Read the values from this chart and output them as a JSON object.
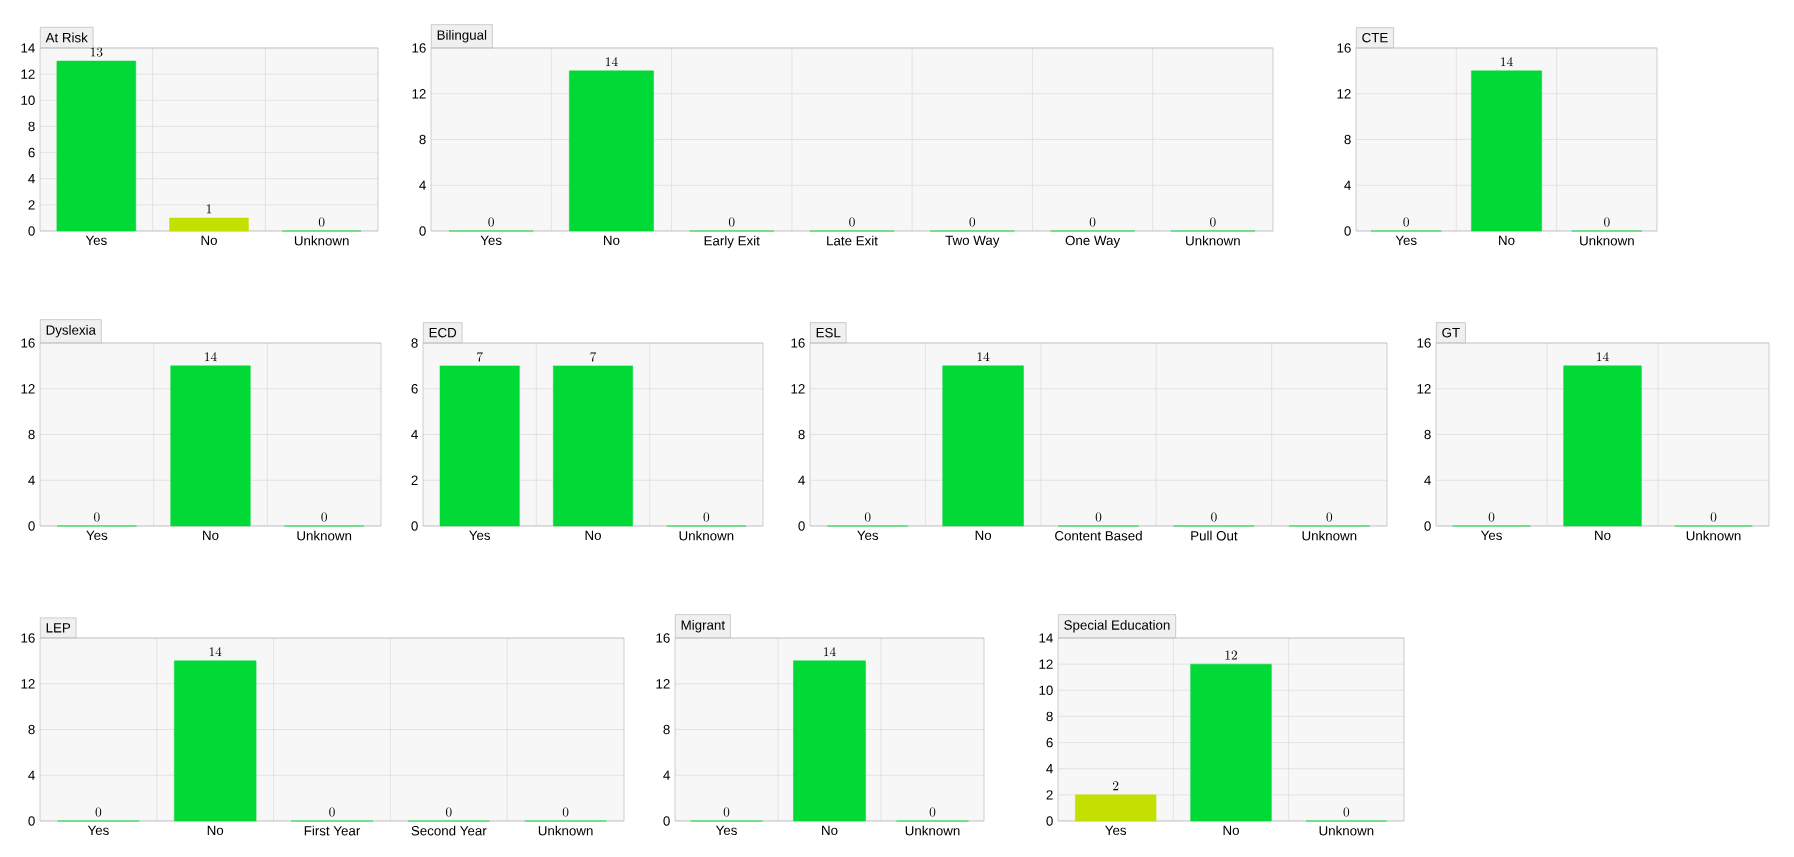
{
  "chart_data": [
    {
      "type": "bar",
      "title": "At Risk",
      "categories": [
        "Yes",
        "No",
        "Unknown"
      ],
      "values": [
        13,
        1,
        0
      ],
      "colors": [
        "#00d936",
        "#c4e000",
        "#00d936"
      ],
      "ylim": [
        0,
        14
      ],
      "yticks": [
        0,
        2,
        4,
        6,
        8,
        10,
        12,
        14
      ],
      "data_labels": true,
      "grid": true
    },
    {
      "type": "bar",
      "title": "Bilingual",
      "categories": [
        "Yes",
        "No",
        "Early Exit",
        "Late Exit",
        "Two Way",
        "One Way",
        "Unknown"
      ],
      "values": [
        0,
        14,
        0,
        0,
        0,
        0,
        0
      ],
      "colors": [
        "#00d936",
        "#00d936",
        "#00d936",
        "#00d936",
        "#00d936",
        "#00d936",
        "#00d936"
      ],
      "ylim": [
        0,
        16
      ],
      "yticks": [
        0,
        4,
        8,
        12,
        16
      ],
      "data_labels": true,
      "grid": true
    },
    {
      "type": "bar",
      "title": "CTE",
      "categories": [
        "Yes",
        "No",
        "Unknown"
      ],
      "values": [
        0,
        14,
        0
      ],
      "colors": [
        "#00d936",
        "#00d936",
        "#00d936"
      ],
      "ylim": [
        0,
        16
      ],
      "yticks": [
        0,
        4,
        8,
        12,
        16
      ],
      "data_labels": true,
      "grid": true
    },
    {
      "type": "bar",
      "title": "Dyslexia",
      "categories": [
        "Yes",
        "No",
        "Unknown"
      ],
      "values": [
        0,
        14,
        0
      ],
      "colors": [
        "#00d936",
        "#00d936",
        "#00d936"
      ],
      "ylim": [
        0,
        16
      ],
      "yticks": [
        0,
        4,
        8,
        12,
        16
      ],
      "data_labels": true,
      "grid": true
    },
    {
      "type": "bar",
      "title": "ECD",
      "categories": [
        "Yes",
        "No",
        "Unknown"
      ],
      "values": [
        7,
        7,
        0
      ],
      "colors": [
        "#00d936",
        "#00d936",
        "#00d936"
      ],
      "ylim": [
        0,
        8
      ],
      "yticks": [
        0,
        2,
        4,
        6,
        8
      ],
      "data_labels": true,
      "grid": true
    },
    {
      "type": "bar",
      "title": "ESL",
      "categories": [
        "Yes",
        "No",
        "Content Based",
        "Pull Out",
        "Unknown"
      ],
      "values": [
        0,
        14,
        0,
        0,
        0
      ],
      "colors": [
        "#00d936",
        "#00d936",
        "#00d936",
        "#00d936",
        "#00d936"
      ],
      "ylim": [
        0,
        16
      ],
      "yticks": [
        0,
        4,
        8,
        12,
        16
      ],
      "data_labels": true,
      "grid": true
    },
    {
      "type": "bar",
      "title": "GT",
      "categories": [
        "Yes",
        "No",
        "Unknown"
      ],
      "values": [
        0,
        14,
        0
      ],
      "colors": [
        "#00d936",
        "#00d936",
        "#00d936"
      ],
      "ylim": [
        0,
        16
      ],
      "yticks": [
        0,
        4,
        8,
        12,
        16
      ],
      "data_labels": true,
      "grid": true
    },
    {
      "type": "bar",
      "title": "LEP",
      "categories": [
        "Yes",
        "No",
        "First Year",
        "Second Year",
        "Unknown"
      ],
      "values": [
        0,
        14,
        0,
        0,
        0
      ],
      "colors": [
        "#00d936",
        "#00d936",
        "#00d936",
        "#00d936",
        "#00d936"
      ],
      "ylim": [
        0,
        16
      ],
      "yticks": [
        0,
        4,
        8,
        12,
        16
      ],
      "data_labels": true,
      "grid": true
    },
    {
      "type": "bar",
      "title": "Migrant",
      "categories": [
        "Yes",
        "No",
        "Unknown"
      ],
      "values": [
        0,
        14,
        0
      ],
      "colors": [
        "#00d936",
        "#00d936",
        "#00d936"
      ],
      "ylim": [
        0,
        16
      ],
      "yticks": [
        0,
        4,
        8,
        12,
        16
      ],
      "data_labels": true,
      "grid": true
    },
    {
      "type": "bar",
      "title": "Special Education",
      "categories": [
        "Yes",
        "No",
        "Unknown"
      ],
      "values": [
        2,
        12,
        0
      ],
      "colors": [
        "#c4e000",
        "#00d936",
        "#00d936"
      ],
      "ylim": [
        0,
        14
      ],
      "yticks": [
        0,
        2,
        4,
        6,
        8,
        10,
        12,
        14
      ],
      "data_labels": true,
      "grid": true
    }
  ]
}
